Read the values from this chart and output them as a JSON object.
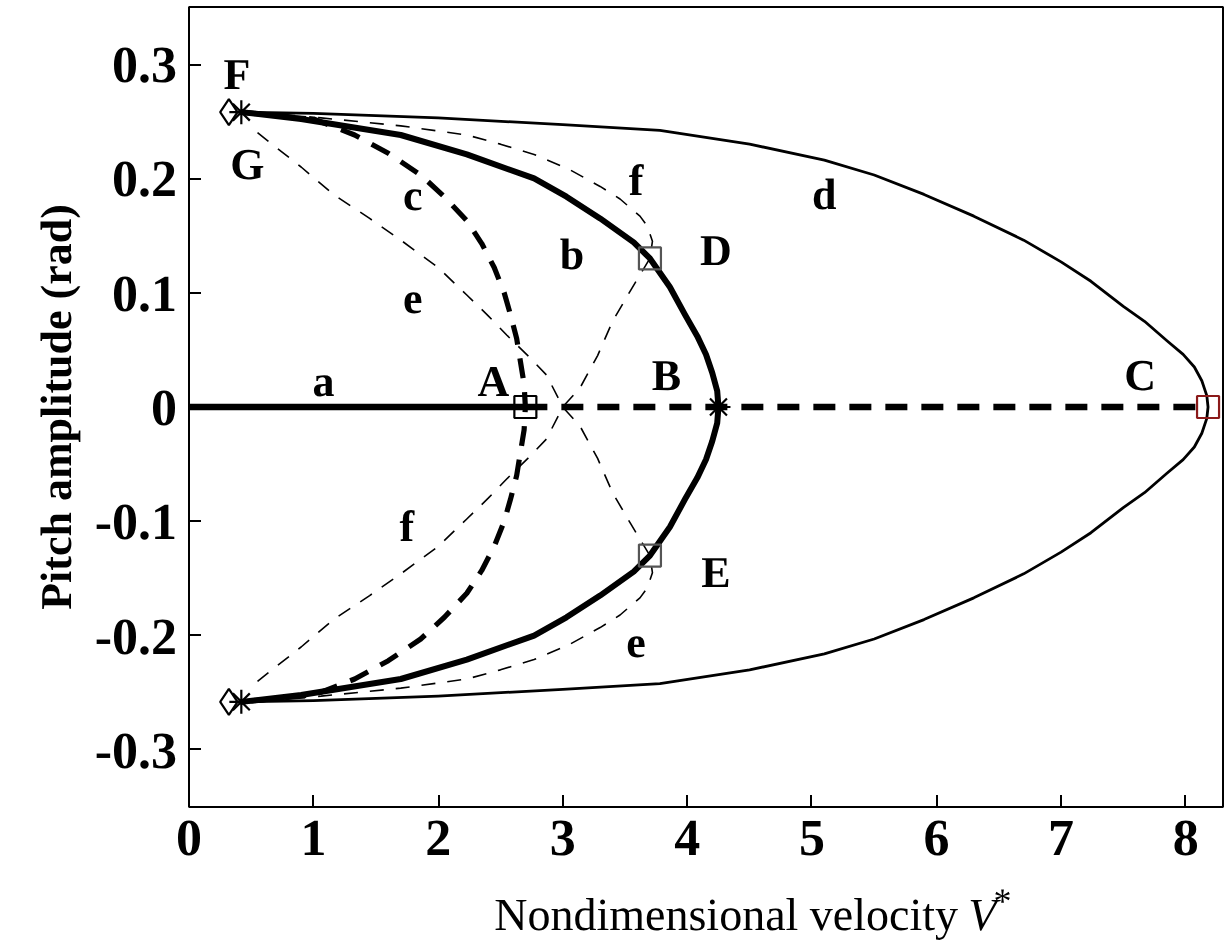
{
  "chart_data": {
    "type": "line",
    "xlabel": "Nondimensional velocity V$^{*}$",
    "ylabel": "Pitch amplitude (rad)",
    "xlim": [
      0,
      8.3
    ],
    "ylim": [
      -0.35,
      0.35
    ],
    "xticks": [
      0,
      1,
      2,
      3,
      4,
      5,
      6,
      7,
      8
    ],
    "yticks": [
      -0.3,
      -0.2,
      -0.1,
      0,
      0.1,
      0.2,
      0.3
    ],
    "series": [
      {
        "color": "#000000",
        "line_style": "solid",
        "x": [
          0,
          1.08,
          2.7
        ],
        "values": [
          0,
          0,
          0
        ]
      },
      {
        "color": "#000000",
        "line_style": "dashed",
        "x": [
          2.7,
          8.18
        ],
        "values": [
          0,
          0
        ]
      },
      {
        "color": "#000000",
        "line_style": "solid",
        "x": [
          0.42,
          0.9,
          1.3,
          1.7,
          2.23,
          2.77,
          3.03,
          3.3,
          3.57,
          3.7,
          3.86,
          3.98,
          4.08,
          4.15,
          4.2,
          4.24,
          4.25,
          4.24,
          4.2,
          4.15,
          4.08,
          3.98,
          3.86,
          3.7,
          3.57,
          3.3,
          3.03,
          2.77,
          2.23,
          1.7,
          1.3,
          0.9,
          0.42
        ],
        "values": [
          0.258,
          0.252,
          0.245,
          0.238,
          0.221,
          0.2,
          0.184,
          0.165,
          0.144,
          0.13,
          0.105,
          0.081,
          0.062,
          0.046,
          0.03,
          0.014,
          0,
          -0.014,
          -0.03,
          -0.046,
          -0.062,
          -0.081,
          -0.105,
          -0.13,
          -0.144,
          -0.165,
          -0.184,
          -0.2,
          -0.221,
          -0.238,
          -0.245,
          -0.252,
          -0.258
        ]
      },
      {
        "color": "#000000",
        "line_style": "dashed",
        "x": [
          0.42,
          1.0,
          1.33,
          1.6,
          1.86,
          2.05,
          2.23,
          2.35,
          2.45,
          2.53,
          2.58,
          2.63,
          2.66,
          2.69,
          2.7,
          2.69,
          2.66,
          2.63,
          2.58,
          2.53,
          2.45,
          2.35,
          2.23,
          2.05,
          1.86,
          1.6,
          1.33,
          1.0,
          0.42
        ],
        "values": [
          0.258,
          0.252,
          0.238,
          0.222,
          0.203,
          0.184,
          0.163,
          0.143,
          0.122,
          0.1,
          0.081,
          0.06,
          0.04,
          0.02,
          0,
          -0.02,
          -0.04,
          -0.06,
          -0.081,
          -0.1,
          -0.122,
          -0.143,
          -0.163,
          -0.184,
          -0.203,
          -0.222,
          -0.238,
          -0.252,
          -0.258
        ]
      },
      {
        "color": "#000000",
        "line_style": "solid",
        "x": [
          0.42,
          1.0,
          2.0,
          3.0,
          3.78,
          4.5,
          5.1,
          5.5,
          5.9,
          6.3,
          6.7,
          7.0,
          7.24,
          7.5,
          7.67,
          7.85,
          7.98,
          8.07,
          8.13,
          8.17,
          8.18,
          8.17,
          8.13,
          8.07,
          7.98,
          7.85,
          7.67,
          7.5,
          7.24,
          7.0,
          6.7,
          6.3,
          5.9,
          5.5,
          5.1,
          4.5,
          3.78,
          3.0,
          2.0,
          1.0,
          0.42
        ],
        "values": [
          0.258,
          0.257,
          0.253,
          0.247,
          0.242,
          0.23,
          0.216,
          0.203,
          0.186,
          0.167,
          0.146,
          0.127,
          0.11,
          0.088,
          0.075,
          0.058,
          0.046,
          0.035,
          0.023,
          0.01,
          0,
          -0.01,
          -0.023,
          -0.035,
          -0.046,
          -0.058,
          -0.075,
          -0.088,
          -0.11,
          -0.127,
          -0.146,
          -0.167,
          -0.186,
          -0.203,
          -0.216,
          -0.23,
          -0.242,
          -0.247,
          -0.253,
          -0.257,
          -0.258
        ]
      },
      {
        "color": "#000000",
        "line_style": "dashed",
        "x": [
          0.55,
          0.63,
          0.9,
          1.16,
          1.45,
          1.7,
          2.0,
          2.23,
          2.4,
          2.55,
          2.72,
          2.87,
          3.0,
          3.14,
          3.28,
          3.4,
          3.55,
          3.7,
          3.72,
          3.68,
          3.62,
          3.46,
          3.3,
          3.05,
          2.77,
          2.5,
          2.23,
          1.7,
          1.06,
          0.42
        ],
        "values": [
          0.24,
          0.233,
          0.21,
          0.186,
          0.165,
          0.146,
          0.122,
          0.098,
          0.08,
          0.063,
          0.045,
          0.028,
          0,
          -0.017,
          -0.045,
          -0.075,
          -0.103,
          -0.13,
          -0.145,
          -0.158,
          -0.167,
          -0.182,
          -0.193,
          -0.208,
          -0.221,
          -0.23,
          -0.238,
          -0.246,
          -0.253,
          -0.258
        ]
      },
      {
        "color": "#000000",
        "line_style": "dashed",
        "x": [
          0.55,
          0.63,
          0.9,
          1.16,
          1.45,
          1.7,
          2.0,
          2.23,
          2.4,
          2.55,
          2.72,
          2.87,
          3.0,
          3.14,
          3.28,
          3.4,
          3.55,
          3.7,
          3.72,
          3.68,
          3.62,
          3.46,
          3.3,
          3.05,
          2.77,
          2.5,
          2.23,
          1.7,
          1.06,
          0.42
        ],
        "values": [
          -0.24,
          -0.233,
          -0.21,
          -0.186,
          -0.165,
          -0.146,
          -0.122,
          -0.098,
          -0.08,
          -0.063,
          -0.045,
          -0.028,
          0,
          0.017,
          0.045,
          0.075,
          0.103,
          0.13,
          0.145,
          0.158,
          0.167,
          0.182,
          0.193,
          0.208,
          0.221,
          0.23,
          0.238,
          0.246,
          0.253,
          0.258
        ]
      },
      {
        "type": "scatter",
        "marker": "diamond",
        "color": "#000000",
        "x": [
          0.32,
          0.32
        ],
        "values": [
          0.258,
          -0.258
        ]
      },
      {
        "type": "scatter",
        "marker": "cross",
        "color": "#000000",
        "x": [
          0.42,
          0.42,
          4.25
        ],
        "values": [
          0.258,
          -0.258,
          0
        ]
      },
      {
        "type": "scatter",
        "marker": "square",
        "colors": [
          "#000000",
          "#555555",
          "#555555",
          "#8b1a1a"
        ],
        "x": [
          2.7,
          3.7,
          3.7,
          8.18
        ],
        "values": [
          0,
          0.13,
          -0.13,
          0
        ]
      }
    ],
    "annotations": [
      {
        "text": "a",
        "x": 1.08,
        "y": 0
      },
      {
        "text": "A",
        "x": 2.7,
        "y": 0
      },
      {
        "text": "B",
        "x": 4.25,
        "y": 0
      },
      {
        "text": "C",
        "x": 8.18,
        "y": 0
      },
      {
        "text": "D",
        "x": 3.7,
        "y": 0.13
      },
      {
        "text": "E",
        "x": 3.7,
        "y": -0.13
      },
      {
        "text": "F",
        "x": 0.32,
        "y": 0.258
      },
      {
        "text": "G",
        "x": 0.42,
        "y": 0.258
      },
      {
        "text": "b",
        "x": 2.77,
        "y": 0.2
      },
      {
        "text": "c",
        "x": 1.86,
        "y": 0.203
      },
      {
        "text": "d",
        "x": 5.1,
        "y": 0.216
      },
      {
        "text": "e",
        "x": 1.7,
        "y": 0.146
      },
      {
        "text": "f",
        "x": 3.3,
        "y": 0.193
      },
      {
        "text": "e",
        "x": 3.3,
        "y": -0.193
      },
      {
        "text": "f",
        "x": 1.7,
        "y": -0.146
      }
    ]
  }
}
